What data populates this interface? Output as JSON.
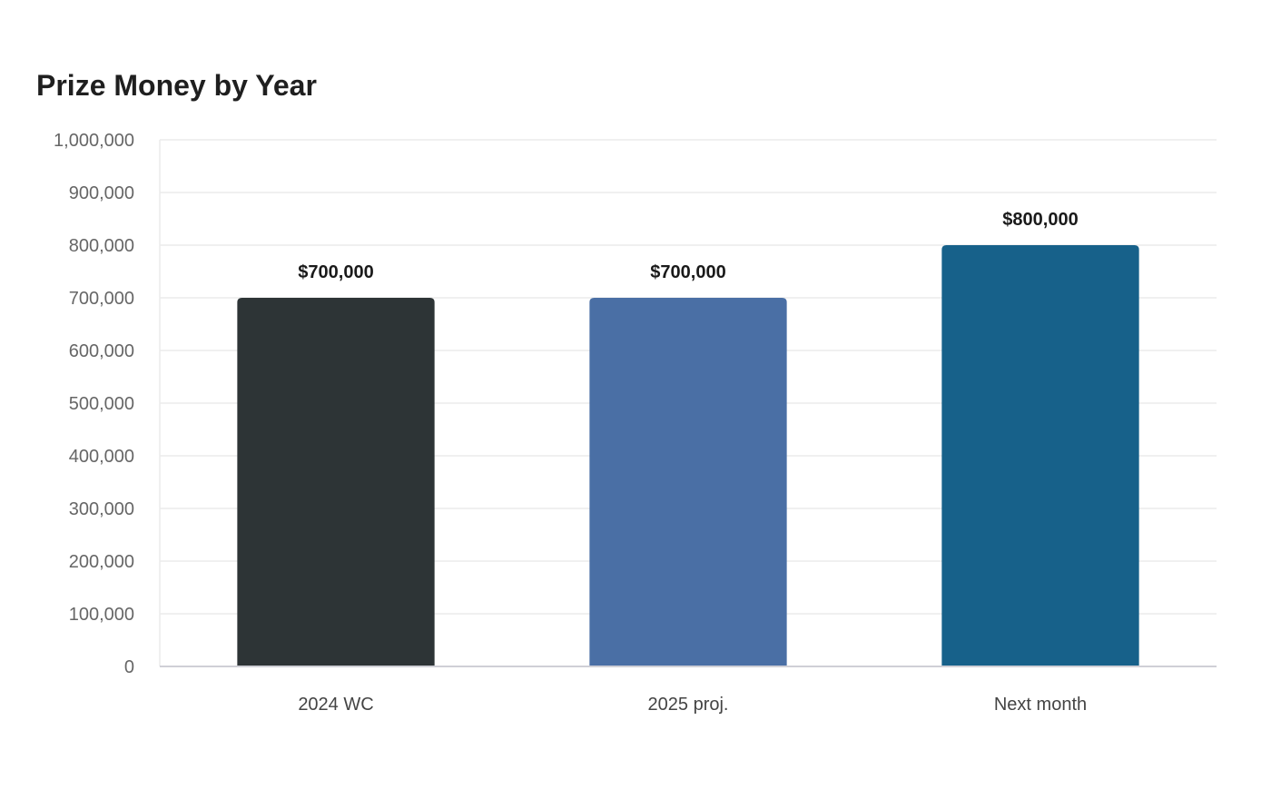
{
  "chart_data": {
    "type": "bar",
    "title": "Prize Money by Year",
    "xlabel": "",
    "ylabel": "",
    "categories": [
      "2024 WC",
      "2025 proj.",
      "Next month"
    ],
    "values": [
      700000,
      700000,
      800000
    ],
    "data_labels": [
      "$700,000",
      "$700,000",
      "$800,000"
    ],
    "colors": [
      "#2d3436",
      "#4a6fa5",
      "#17618a"
    ],
    "ylim": [
      0,
      1000000
    ],
    "yticks": [
      0,
      100000,
      200000,
      300000,
      400000,
      500000,
      600000,
      700000,
      800000,
      900000,
      1000000
    ],
    "ytick_labels": [
      "0",
      "100,000",
      "200,000",
      "300,000",
      "400,000",
      "500,000",
      "600,000",
      "700,000",
      "800,000",
      "900,000",
      "1,000,000"
    ],
    "grid": true,
    "legend": "none"
  }
}
